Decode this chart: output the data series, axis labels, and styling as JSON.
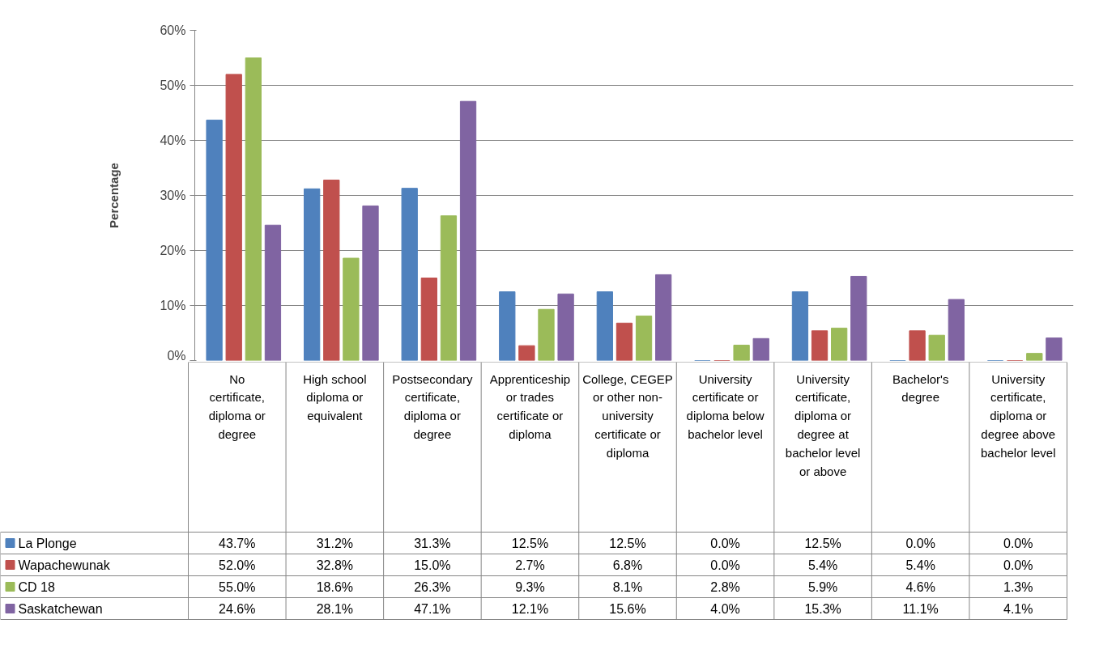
{
  "chart_data": {
    "type": "bar",
    "ylabel": "Percentage",
    "categories": [
      "No certificate, diploma or degree",
      "High school diploma or equivalent",
      "Postsecondary certificate, diploma or degree",
      "Apprenticeship or trades certificate or diploma",
      "College, CEGEP or other non-university certificate or diploma",
      "University certificate or diploma below bachelor level",
      "University certificate, diploma or degree at bachelor level or above",
      "Bachelor's degree",
      "University certificate, diploma or degree above bachelor level"
    ],
    "series": [
      {
        "name": "La Plonge",
        "color": "#4f81bd",
        "values": [
          43.7,
          31.2,
          31.3,
          12.5,
          12.5,
          0.0,
          12.5,
          0.0,
          0.0
        ],
        "value_labels": [
          "43.7%",
          "31.2%",
          "31.3%",
          "12.5%",
          "12.5%",
          "0.0%",
          "12.5%",
          "0.0%",
          "0.0%"
        ]
      },
      {
        "name": "Wapachewunak",
        "color": "#c0504d",
        "values": [
          52.0,
          32.8,
          15.0,
          2.7,
          6.8,
          0.0,
          5.4,
          5.4,
          0.0
        ],
        "value_labels": [
          "52.0%",
          "32.8%",
          "15.0%",
          "2.7%",
          "6.8%",
          "0.0%",
          "5.4%",
          "5.4%",
          "0.0%"
        ]
      },
      {
        "name": "CD 18",
        "color": "#9bbb59",
        "values": [
          55.0,
          18.6,
          26.3,
          9.3,
          8.1,
          2.8,
          5.9,
          4.6,
          1.3
        ],
        "value_labels": [
          "55.0%",
          "18.6%",
          "26.3%",
          "9.3%",
          "8.1%",
          "2.8%",
          "5.9%",
          "4.6%",
          "1.3%"
        ]
      },
      {
        "name": "Saskatchewan",
        "color": "#8064a2",
        "values": [
          24.6,
          28.1,
          47.1,
          12.1,
          15.6,
          4.0,
          15.3,
          11.1,
          4.1
        ],
        "value_labels": [
          "24.6%",
          "28.1%",
          "47.1%",
          "12.1%",
          "15.6%",
          "4.0%",
          "15.3%",
          "11.1%",
          "4.1%"
        ]
      }
    ],
    "ylim": [
      0,
      60
    ],
    "yticks": [
      {
        "value": 0,
        "label": "0%"
      },
      {
        "value": 10,
        "label": "10%"
      },
      {
        "value": 20,
        "label": "20%"
      },
      {
        "value": 30,
        "label": "30%"
      },
      {
        "value": 40,
        "label": "40%"
      },
      {
        "value": 50,
        "label": "50%"
      },
      {
        "value": 60,
        "label": "60%"
      }
    ],
    "grid": "y",
    "legend": "bottom"
  }
}
